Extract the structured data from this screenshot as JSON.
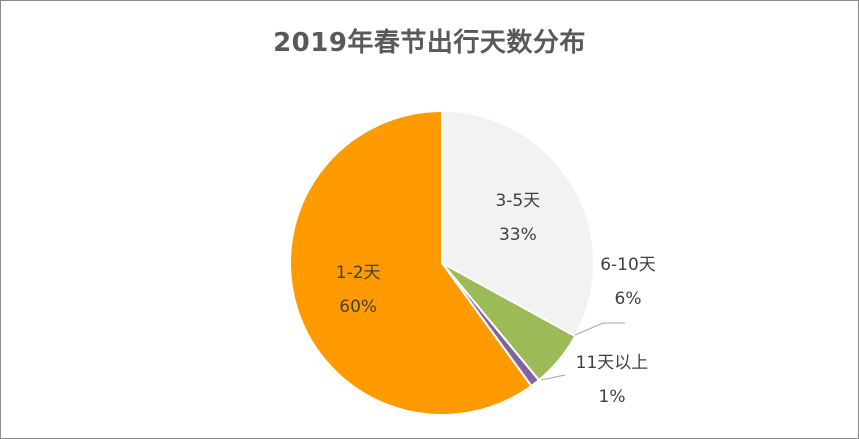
{
  "chart_data": {
    "type": "pie",
    "title": "2019年春节出行天数分布",
    "slices": [
      {
        "label": "3-5天",
        "value": 33,
        "value_label": "33%",
        "color": "#f2f2f2"
      },
      {
        "label": "6-10天",
        "value": 6,
        "value_label": "6%",
        "color": "#9bbb59"
      },
      {
        "label": "11天以上",
        "value": 1,
        "value_label": "1%",
        "color": "#8064a2"
      },
      {
        "label": "1-2天",
        "value": 60,
        "value_label": "60%",
        "color": "#ff9a00"
      }
    ]
  }
}
